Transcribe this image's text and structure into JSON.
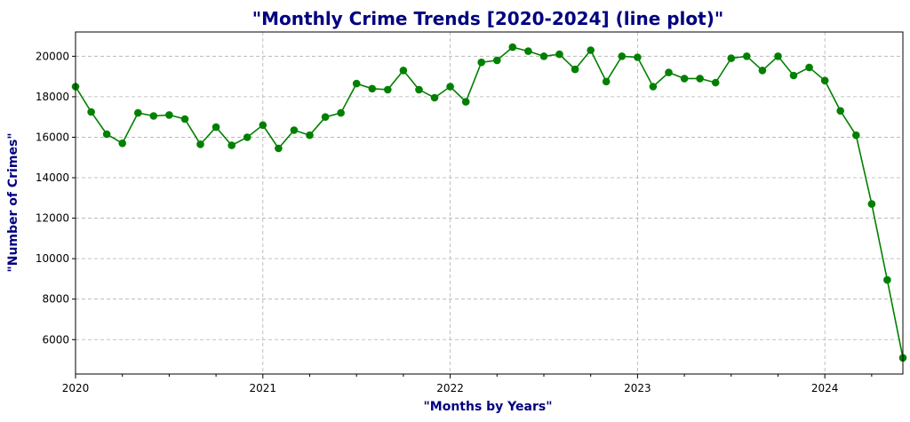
{
  "chart_data": {
    "type": "line",
    "title": "\"Monthly Crime Trends [2020-2024] (line plot)\"",
    "xlabel": "\"Months by Years\"",
    "ylabel": "\"Number of Crimes\"",
    "x_start": "2020-01",
    "xlim": [
      "2020-01",
      "2024-06"
    ],
    "ylim": [
      4300,
      21200
    ],
    "x_ticks": [
      "2020",
      "2021",
      "2022",
      "2023",
      "2024"
    ],
    "y_ticks": [
      6000,
      8000,
      10000,
      12000,
      14000,
      16000,
      18000,
      20000
    ],
    "grid": true,
    "color": "#008000",
    "marker": "circle",
    "series": [
      {
        "values": [
          18500,
          17250,
          16150,
          15700,
          17200,
          17050,
          17100,
          16900,
          15650,
          16500,
          15600,
          16000,
          16600,
          15450,
          16350,
          16100,
          17000,
          17200,
          18650,
          18400,
          18350,
          19300,
          18350,
          17950,
          18500,
          17750,
          19700,
          19800,
          20450,
          20250,
          20000,
          20100,
          19350,
          20300,
          18750,
          20000,
          19950,
          18500,
          19200,
          18900,
          18900,
          18700,
          19900,
          20000,
          19300,
          20000,
          19050,
          19450,
          18800,
          17300,
          16100,
          12700,
          8950,
          5100
        ]
      }
    ]
  }
}
